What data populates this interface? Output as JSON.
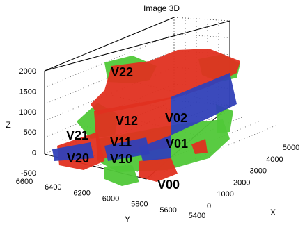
{
  "chart_data": {
    "type": "scatter",
    "projection": "3d",
    "title": "Image 3D",
    "xlabel": "X",
    "ylabel": "Y",
    "zlabel": "Z",
    "x_ticks": [
      "0",
      "1000",
      "2000",
      "3000",
      "4000",
      "5000"
    ],
    "y_ticks": [
      "6600",
      "6400",
      "6200",
      "6000",
      "5800",
      "5600",
      "5400"
    ],
    "z_ticks": [
      "-500",
      "0",
      "500",
      "1000",
      "1500",
      "2000"
    ],
    "xlim": [
      0,
      5000
    ],
    "ylim": [
      5400,
      6600
    ],
    "zlim": [
      -500,
      2000
    ],
    "grid": true,
    "series_colors": [
      "#e03020",
      "#50c838",
      "#3040b8"
    ],
    "region_labels": [
      {
        "text": "V22"
      },
      {
        "text": "V12"
      },
      {
        "text": "V02"
      },
      {
        "text": "V21"
      },
      {
        "text": "V11"
      },
      {
        "text": "V01"
      },
      {
        "text": "V20"
      },
      {
        "text": "V10"
      },
      {
        "text": "V00"
      }
    ]
  }
}
